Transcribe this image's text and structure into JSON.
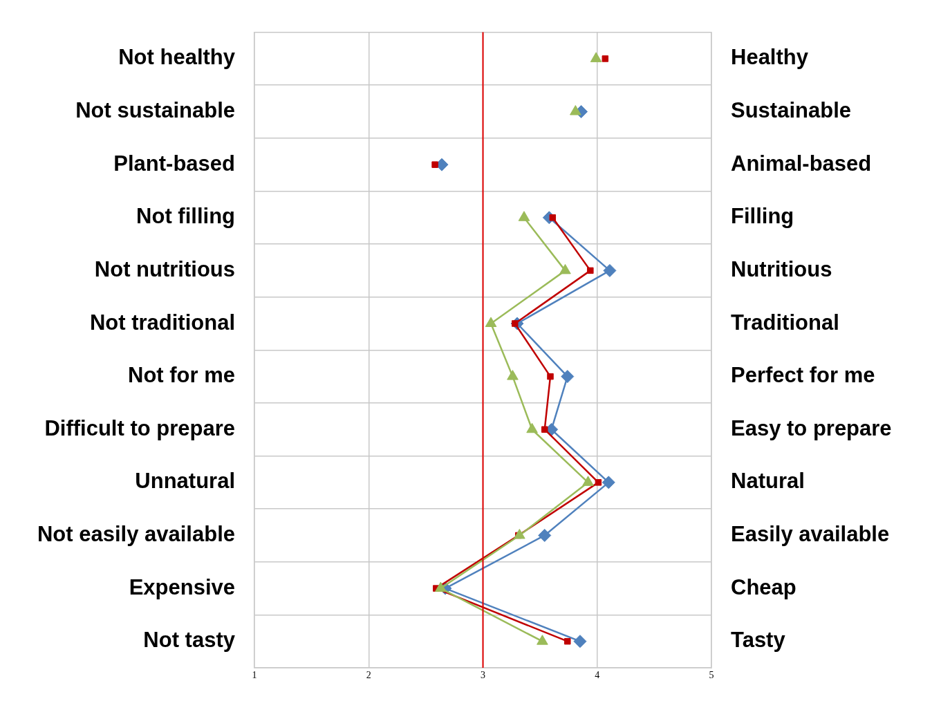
{
  "chart_data": {
    "type": "line",
    "orientation": "horizontal",
    "categories": [
      "Not healthy",
      "Not sustainable",
      "Plant-based",
      "Not filling",
      "Not nutritious",
      "Not traditional",
      "Not for me",
      "Difficult to prepare",
      "Unnatural",
      "Not easily available",
      "Expensive",
      "Not tasty"
    ],
    "y2_categories": [
      "Healthy",
      "Sustainable",
      "Animal-based",
      "Filling",
      "Nutritious",
      "Traditional",
      "Perfect for me",
      "Easy to prepare",
      "Natural",
      "Easily available",
      "Cheap",
      "Tasty"
    ],
    "xlim": [
      1,
      5
    ],
    "xticks": [
      1,
      2,
      3,
      4,
      5
    ],
    "grid": true,
    "legend": false,
    "ref_lines": [
      {
        "axis": "x",
        "value": 3,
        "color": "#e00000"
      }
    ],
    "series": [
      {
        "type": "line",
        "marker": "diamond",
        "color": "#4f81bd",
        "values": [
          null,
          null,
          null,
          3.58,
          4.11,
          3.3,
          3.74,
          3.6,
          4.1,
          3.54,
          2.67,
          3.85
        ]
      },
      {
        "type": "line",
        "marker": "square",
        "color": "#c00000",
        "values": [
          null,
          null,
          null,
          3.61,
          3.94,
          3.28,
          3.59,
          3.54,
          4.01,
          3.31,
          2.59,
          3.74
        ]
      },
      {
        "type": "line",
        "marker": "triangle",
        "color": "#9bbb59",
        "values": [
          null,
          null,
          null,
          3.36,
          3.72,
          3.07,
          3.26,
          3.43,
          3.92,
          3.32,
          2.63,
          3.52
        ]
      },
      {
        "type": "scatter",
        "marker": "diamond",
        "color": "#4f81bd",
        "values": [
          null,
          3.86,
          2.64,
          null,
          null,
          null,
          null,
          null,
          null,
          null,
          null,
          null
        ]
      },
      {
        "type": "scatter",
        "marker": "square",
        "color": "#c00000",
        "values": [
          4.07,
          null,
          2.58,
          null,
          null,
          null,
          null,
          null,
          null,
          null,
          null,
          null
        ]
      },
      {
        "type": "scatter",
        "marker": "triangle",
        "color": "#9bbb59",
        "values": [
          3.99,
          3.81,
          null,
          null,
          null,
          null,
          null,
          null,
          null,
          null,
          null,
          null
        ]
      }
    ]
  }
}
